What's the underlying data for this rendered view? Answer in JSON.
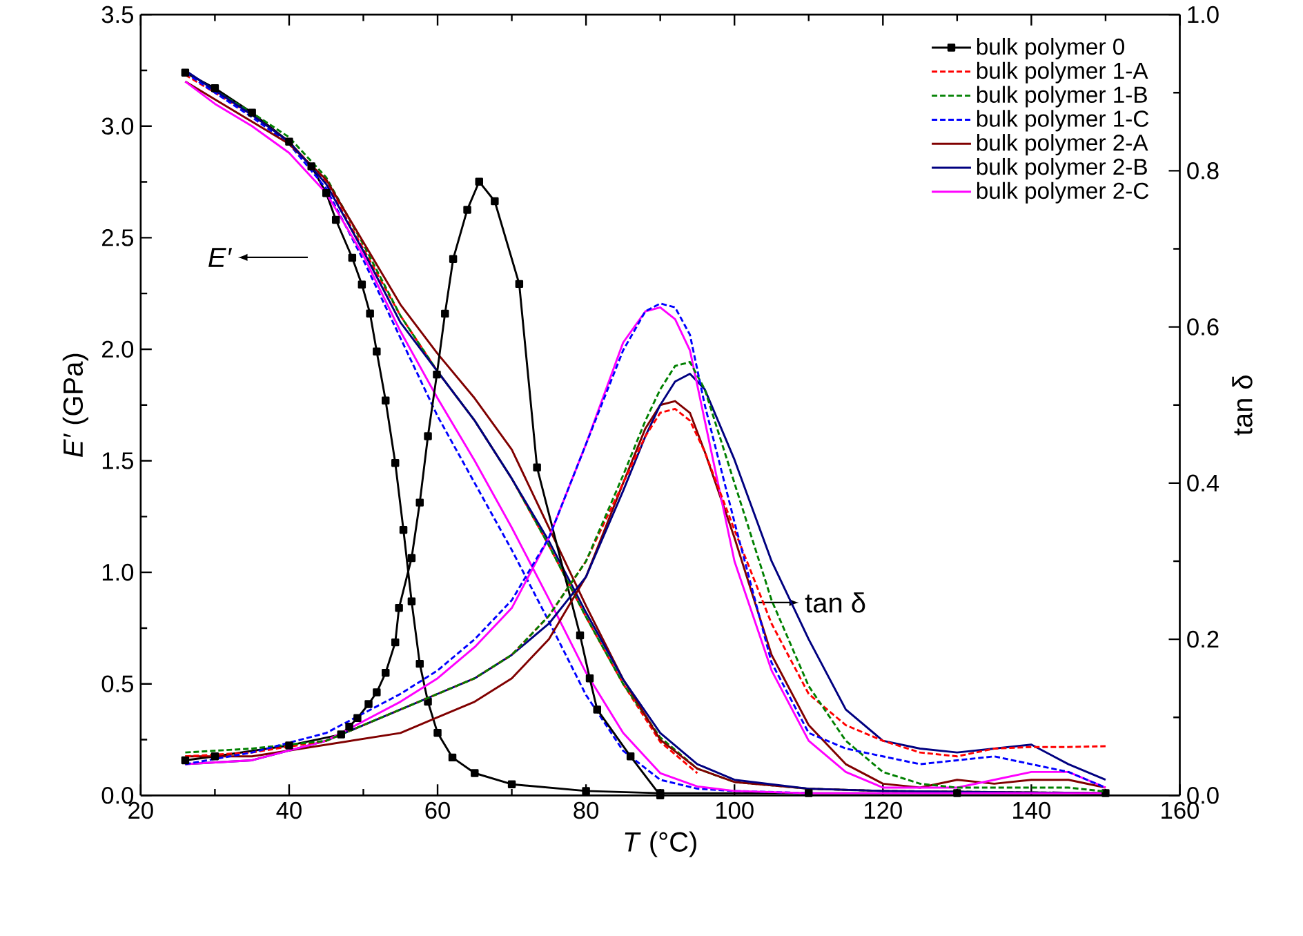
{
  "chart_data": {
    "type": "line",
    "xlabel": "*T* (°C)",
    "ylabel": "*E′* (GPa)",
    "y2label": "tan δ",
    "xlim": [
      20,
      160
    ],
    "xticks": [
      20,
      40,
      60,
      80,
      100,
      120,
      140,
      160
    ],
    "ylim": [
      0,
      3.5
    ],
    "yticks": [
      {
        "value": 0,
        "label": "0.0"
      },
      0.5,
      {
        "value": 1,
        "label": "1.0"
      },
      1.5,
      {
        "value": 2,
        "label": "2.0"
      },
      2.5,
      {
        "value": 3,
        "label": "3.0"
      },
      3.5
    ],
    "y2lim": [
      0,
      1
    ],
    "y2ticks": [
      {
        "value": 0,
        "label": "0.0"
      },
      0.2,
      0.4,
      0.6,
      0.8,
      {
        "value": 1,
        "label": "1.0"
      }
    ],
    "legend": "top right",
    "grid": false,
    "annotations": [
      "*E′*",
      "tan δ"
    ],
    "series": [
      {
        "name": "bulk polymer 0",
        "color": "#000000",
        "marker": "square",
        "line_style": "solid",
        "x": [
          26,
          30,
          35,
          40,
          43,
          45,
          46.3,
          48.5,
          49.8,
          50.9,
          51.8,
          53,
          54.3,
          55.4,
          56.5,
          57.6,
          58.7,
          60,
          62,
          65,
          70,
          80,
          90,
          110,
          130,
          150
        ],
        "values": [
          3.24,
          3.17,
          3.06,
          2.93,
          2.82,
          2.7,
          2.58,
          2.41,
          2.29,
          2.16,
          1.99,
          1.77,
          1.49,
          1.19,
          0.87,
          0.59,
          0.42,
          0.28,
          0.17,
          0.1,
          0.05,
          0.02,
          0.01,
          0.01,
          0.01,
          0.01
        ]
      },
      {
        "name": "bulk polymer 1-A",
        "color": "#ff0000",
        "marker": "none",
        "line_style": "dashed",
        "x": [
          26,
          30,
          35,
          40,
          45,
          50,
          55,
          60,
          65,
          70,
          75,
          80,
          85,
          90,
          95
        ],
        "values": [
          3.23,
          3.15,
          3.05,
          2.93,
          2.75,
          2.45,
          2.15,
          1.9,
          1.68,
          1.42,
          1.12,
          0.8,
          0.5,
          0.24,
          0.1
        ]
      },
      {
        "name": "bulk polymer 1-B",
        "color": "#008000",
        "marker": "none",
        "line_style": "dashed",
        "x": [
          26,
          30,
          35,
          40,
          45,
          50,
          55,
          60,
          65,
          70,
          75,
          80,
          85,
          90,
          95,
          100,
          110,
          120,
          150
        ],
        "values": [
          3.24,
          3.16,
          3.06,
          2.95,
          2.77,
          2.47,
          2.15,
          1.9,
          1.68,
          1.42,
          1.12,
          0.8,
          0.5,
          0.26,
          0.12,
          0.06,
          0.03,
          0.02,
          0.01
        ]
      },
      {
        "name": "bulk polymer 1-C",
        "color": "#0000ff",
        "marker": "none",
        "line_style": "dashed",
        "x": [
          26,
          30,
          35,
          40,
          45,
          50,
          55,
          60,
          65,
          70,
          75,
          80,
          85,
          90,
          95,
          100,
          110
        ],
        "values": [
          3.24,
          3.15,
          3.04,
          2.92,
          2.72,
          2.4,
          2.05,
          1.7,
          1.4,
          1.1,
          0.78,
          0.45,
          0.2,
          0.07,
          0.03,
          0.02,
          0.01
        ]
      },
      {
        "name": "bulk polymer 2-A",
        "color": "#800000",
        "marker": "none",
        "line_style": "solid",
        "x": [
          26,
          30,
          35,
          40,
          45,
          50,
          55,
          60,
          65,
          70,
          75,
          80,
          85,
          90,
          95,
          100,
          110,
          120,
          150
        ],
        "values": [
          3.2,
          3.12,
          3.02,
          2.92,
          2.76,
          2.48,
          2.2,
          1.98,
          1.78,
          1.55,
          1.2,
          0.85,
          0.52,
          0.25,
          0.12,
          0.06,
          0.03,
          0.02,
          0.01
        ]
      },
      {
        "name": "bulk polymer 2-B",
        "color": "#000080",
        "marker": "none",
        "line_style": "solid",
        "x": [
          26,
          30,
          35,
          40,
          45,
          50,
          55,
          60,
          65,
          70,
          75,
          80,
          85,
          90,
          95,
          100,
          110,
          120,
          150
        ],
        "values": [
          3.25,
          3.16,
          3.05,
          2.93,
          2.74,
          2.44,
          2.12,
          1.9,
          1.68,
          1.42,
          1.14,
          0.82,
          0.52,
          0.28,
          0.14,
          0.07,
          0.03,
          0.02,
          0.01
        ]
      },
      {
        "name": "bulk polymer 2-C",
        "color": "#ff00ff",
        "marker": "none",
        "line_style": "solid",
        "x": [
          26,
          30,
          35,
          40,
          45,
          50,
          55,
          60,
          65,
          70,
          75,
          80,
          85,
          90,
          95,
          100,
          110,
          120,
          150
        ],
        "values": [
          3.2,
          3.1,
          3.0,
          2.88,
          2.7,
          2.42,
          2.08,
          1.78,
          1.5,
          1.2,
          0.88,
          0.55,
          0.28,
          0.1,
          0.04,
          0.02,
          0.01,
          0.01,
          0.01
        ]
      },
      {
        "axis": "y2",
        "color": "#000000",
        "marker": "square",
        "line_style": "solid",
        "x": [
          26,
          30,
          40,
          47,
          48.1,
          49.2,
          50.7,
          51.8,
          53,
          54.3,
          54.8,
          56.5,
          57.6,
          58.7,
          59.9,
          61,
          62.1,
          64,
          65.6,
          67.7,
          71,
          73.4,
          79.2,
          80.5,
          81.5,
          86,
          90
        ],
        "values": [
          0.045,
          0.05,
          0.064,
          0.078,
          0.088,
          0.099,
          0.117,
          0.132,
          0.157,
          0.196,
          0.24,
          0.304,
          0.375,
          0.46,
          0.539,
          0.617,
          0.687,
          0.75,
          0.786,
          0.761,
          0.655,
          0.42,
          0.205,
          0.15,
          0.11,
          0.05,
          0
        ]
      },
      {
        "axis": "y2",
        "color": "#ff0000",
        "marker": "none",
        "line_style": "dashed",
        "x": [
          26,
          35,
          45,
          55,
          60,
          65,
          70,
          75,
          80,
          85,
          88,
          90,
          92,
          94,
          96,
          100,
          105,
          110,
          115,
          120,
          125,
          130,
          135,
          140,
          145,
          150
        ],
        "values": [
          0.05,
          0.055,
          0.07,
          0.11,
          0.13,
          0.15,
          0.18,
          0.23,
          0.3,
          0.4,
          0.46,
          0.49,
          0.495,
          0.48,
          0.44,
          0.34,
          0.22,
          0.13,
          0.09,
          0.07,
          0.055,
          0.05,
          0.06,
          0.062,
          0.062,
          0.063
        ]
      },
      {
        "axis": "y2",
        "color": "#008000",
        "marker": "none",
        "line_style": "dashed",
        "x": [
          26,
          35,
          45,
          55,
          60,
          65,
          70,
          75,
          80,
          85,
          88,
          90,
          92,
          94,
          96,
          100,
          105,
          110,
          115,
          120,
          125,
          130,
          135,
          140,
          145,
          150
        ],
        "values": [
          0.055,
          0.06,
          0.07,
          0.11,
          0.13,
          0.15,
          0.18,
          0.23,
          0.3,
          0.41,
          0.48,
          0.52,
          0.55,
          0.555,
          0.52,
          0.4,
          0.25,
          0.14,
          0.07,
          0.03,
          0.015,
          0.01,
          0.01,
          0.01,
          0.01,
          0.005
        ]
      },
      {
        "axis": "y2",
        "color": "#0000ff",
        "marker": "none",
        "line_style": "dashed",
        "x": [
          26,
          35,
          45,
          55,
          60,
          65,
          70,
          75,
          80,
          85,
          88,
          90,
          92,
          94,
          96,
          100,
          105,
          110,
          115,
          120,
          125,
          130,
          135,
          140,
          145,
          150
        ],
        "values": [
          0.04,
          0.055,
          0.08,
          0.13,
          0.16,
          0.2,
          0.25,
          0.33,
          0.45,
          0.57,
          0.62,
          0.63,
          0.625,
          0.59,
          0.5,
          0.35,
          0.17,
          0.08,
          0.06,
          0.05,
          0.04,
          0.045,
          0.05,
          0.04,
          0.03,
          0.01
        ]
      },
      {
        "axis": "y2",
        "color": "#800000",
        "marker": "none",
        "line_style": "solid",
        "x": [
          26,
          35,
          45,
          55,
          60,
          65,
          70,
          75,
          80,
          85,
          88,
          90,
          92,
          94,
          96,
          100,
          105,
          110,
          115,
          120,
          125,
          130,
          135,
          140,
          145,
          150
        ],
        "values": [
          0.05,
          0.05,
          0.065,
          0.08,
          0.1,
          0.12,
          0.15,
          0.2,
          0.28,
          0.4,
          0.47,
          0.5,
          0.505,
          0.49,
          0.44,
          0.33,
          0.18,
          0.09,
          0.04,
          0.015,
          0.01,
          0.02,
          0.015,
          0.02,
          0.02,
          0.01
        ]
      },
      {
        "axis": "y2",
        "color": "#000080",
        "marker": "none",
        "line_style": "solid",
        "x": [
          26,
          35,
          45,
          55,
          60,
          65,
          70,
          75,
          80,
          85,
          88,
          90,
          92,
          94,
          96,
          100,
          105,
          110,
          115,
          120,
          125,
          130,
          135,
          140,
          145,
          150
        ],
        "values": [
          0.04,
          0.045,
          0.07,
          0.11,
          0.13,
          0.15,
          0.18,
          0.22,
          0.28,
          0.39,
          0.46,
          0.5,
          0.53,
          0.54,
          0.52,
          0.43,
          0.3,
          0.2,
          0.11,
          0.07,
          0.06,
          0.055,
          0.06,
          0.065,
          0.04,
          0.02
        ]
      },
      {
        "axis": "y2",
        "color": "#ff00ff",
        "marker": "none",
        "line_style": "solid",
        "x": [
          26,
          35,
          45,
          55,
          60,
          65,
          70,
          75,
          80,
          85,
          88,
          90,
          92,
          94,
          96,
          100,
          105,
          110,
          115,
          120,
          125,
          130,
          135,
          140,
          145,
          150
        ],
        "values": [
          0.04,
          0.045,
          0.07,
          0.12,
          0.15,
          0.19,
          0.24,
          0.33,
          0.45,
          0.58,
          0.62,
          0.625,
          0.61,
          0.57,
          0.48,
          0.3,
          0.16,
          0.07,
          0.03,
          0.01,
          0.01,
          0.01,
          0.02,
          0.03,
          0.03,
          0.01
        ]
      }
    ]
  }
}
